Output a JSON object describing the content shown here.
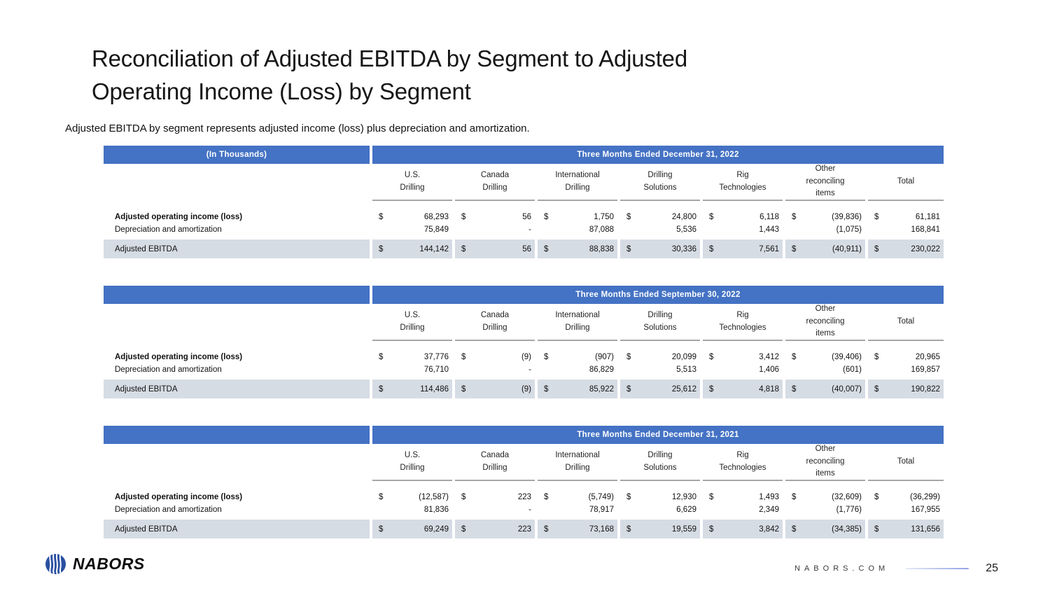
{
  "slide": {
    "title_line1": "Reconciliation of Adjusted EBITDA by Segment to Adjusted",
    "title_line2": "Operating Income (Loss) by Segment",
    "subtitle": "Adjusted EBITDA by segment represents adjusted income (loss) plus depreciation and amortization."
  },
  "currency_symbol": "$",
  "table_columns": [
    "U.S.\nDrilling",
    "Canada\nDrilling",
    "International\nDrilling",
    "Drilling\nSolutions",
    "Rig\nTechnologies",
    "Other\nreconciling\nitems",
    "Total"
  ],
  "tables": [
    {
      "corner_label": "(In Thousands)",
      "period_header": "Three Months Ended December 31, 2022",
      "rows": [
        {
          "label": "Adjusted operating income (loss)",
          "bold": true,
          "dollar": true,
          "highlight": false,
          "values": [
            "68,293",
            "56",
            "1,750",
            "24,800",
            "6,118",
            "(39,836)",
            "61,181"
          ]
        },
        {
          "label": "Depreciation and amortization",
          "bold": false,
          "dollar": false,
          "highlight": false,
          "values": [
            "75,849",
            "-",
            "87,088",
            "5,536",
            "1,443",
            "(1,075)",
            "168,841"
          ]
        },
        {
          "label": "Adjusted EBITDA",
          "bold": false,
          "dollar": true,
          "highlight": true,
          "values": [
            "144,142",
            "56",
            "88,838",
            "30,336",
            "7,561",
            "(40,911)",
            "230,022"
          ]
        }
      ]
    },
    {
      "corner_label": "",
      "period_header": "Three Months Ended September 30, 2022",
      "rows": [
        {
          "label": "Adjusted operating income (loss)",
          "bold": true,
          "dollar": true,
          "highlight": false,
          "values": [
            "37,776",
            "(9)",
            "(907)",
            "20,099",
            "3,412",
            "(39,406)",
            "20,965"
          ]
        },
        {
          "label": "Depreciation and amortization",
          "bold": false,
          "dollar": false,
          "highlight": false,
          "values": [
            "76,710",
            "-",
            "86,829",
            "5,513",
            "1,406",
            "(601)",
            "169,857"
          ]
        },
        {
          "label": "Adjusted EBITDA",
          "bold": false,
          "dollar": true,
          "highlight": true,
          "values": [
            "114,486",
            "(9)",
            "85,922",
            "25,612",
            "4,818",
            "(40,007)",
            "190,822"
          ]
        }
      ]
    },
    {
      "corner_label": "",
      "period_header": "Three Months Ended December 31, 2021",
      "rows": [
        {
          "label": "Adjusted operating income (loss)",
          "bold": true,
          "dollar": true,
          "highlight": false,
          "values": [
            "(12,587)",
            "223",
            "(5,749)",
            "12,930",
            "1,493",
            "(32,609)",
            "(36,299)"
          ]
        },
        {
          "label": "Depreciation and amortization",
          "bold": false,
          "dollar": false,
          "highlight": false,
          "values": [
            "81,836",
            "-",
            "78,917",
            "6,629",
            "2,349",
            "(1,776)",
            "167,955"
          ]
        },
        {
          "label": "Adjusted EBITDA",
          "bold": false,
          "dollar": true,
          "highlight": true,
          "values": [
            "69,249",
            "223",
            "73,168",
            "19,559",
            "3,842",
            "(34,385)",
            "131,656"
          ]
        }
      ]
    }
  ],
  "footer": {
    "logo_text": "NABORS",
    "logo_icon": "nabors-globe-icon",
    "website": "NABORS.COM",
    "page_number": "25"
  },
  "colors": {
    "header_blue": "#4472C4",
    "highlight_row_bg": "#D6DCE4",
    "header_underline": "#A6A6A6",
    "logo_blue": "#2B50A1"
  }
}
